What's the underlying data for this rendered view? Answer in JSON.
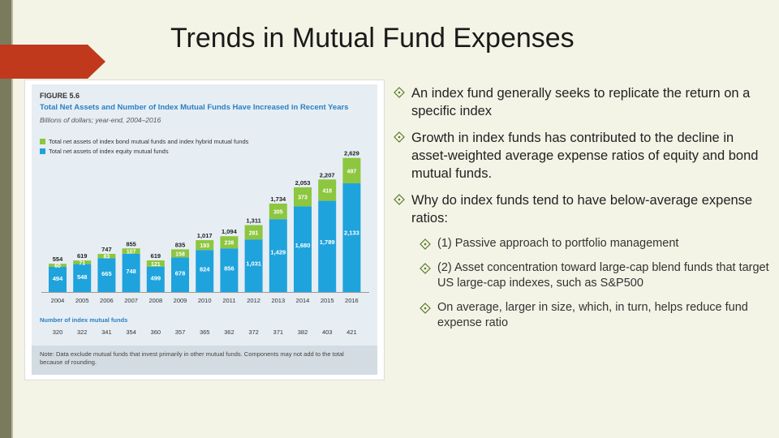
{
  "title": "Trends in Mutual Fund Expenses",
  "figure": {
    "label": "FIGURE 5.6",
    "title": "Total Net Assets and Number of Index Mutual Funds Have Increased in Recent Years",
    "subtitle": "Billions of dollars; year-end, 2004–2016",
    "count_title": "Number of index mutual funds",
    "note": "Note: Data exclude mutual funds that invest primarily in other mutual funds. Components may not add to the total because of rounding."
  },
  "colors": {
    "bond": "#8dc63f",
    "equity": "#1fa3dc",
    "accent": "#2a7fc1",
    "red": "#c0392b"
  },
  "chart_data": {
    "type": "bar",
    "stacked": true,
    "categories": [
      "2004",
      "2005",
      "2006",
      "2007",
      "2008",
      "2009",
      "2010",
      "2011",
      "2012",
      "2013",
      "2014",
      "2015",
      "2016"
    ],
    "series": [
      {
        "name": "Total net assets of index equity mutual funds",
        "values": [
          494,
          548,
          665,
          748,
          499,
          678,
          824,
          856,
          1031,
          1429,
          1680,
          1789,
          2133
        ],
        "labels": [
          "494",
          "548",
          "665",
          "748",
          "499",
          "678",
          "824",
          "856",
          "1,031",
          "1,429",
          "1,680",
          "1,789",
          "2,133"
        ]
      },
      {
        "name": "Total net assets of index bond mutual funds and index hybrid mutual funds",
        "values": [
          60,
          71,
          83,
          107,
          121,
          158,
          193,
          238,
          281,
          305,
          373,
          418,
          497
        ],
        "labels": [
          "60",
          "71",
          "83",
          "107",
          "121",
          "158",
          "193",
          "238",
          "281",
          "305",
          "373",
          "418",
          "497"
        ]
      }
    ],
    "totals": [
      554,
      619,
      747,
      855,
      619,
      835,
      1017,
      1094,
      1311,
      1734,
      2053,
      2207,
      2629
    ],
    "total_labels": [
      "554",
      "619",
      "747",
      "855",
      "619",
      "835",
      "1,017",
      "1,094",
      "1,311",
      "1,734",
      "2,053",
      "2,207",
      "2,629"
    ],
    "fund_counts": [
      "320",
      "322",
      "341",
      "354",
      "360",
      "357",
      "365",
      "362",
      "372",
      "371",
      "382",
      "403",
      "421"
    ],
    "ylim": [
      0,
      2800
    ]
  },
  "bullets": [
    {
      "level": 1,
      "text": "An index fund generally seeks to replicate the return on a specific index"
    },
    {
      "level": 1,
      "text": "Growth in index funds has contributed to the decline in asset-weighted average expense ratios of equity and bond mutual funds."
    },
    {
      "level": 1,
      "text": "Why do index funds tend to have below-average expense ratios:"
    },
    {
      "level": 2,
      "text": "(1) Passive approach to portfolio management"
    },
    {
      "level": 2,
      "text": "(2) Asset concentration toward large-cap blend funds that target US large-cap indexes, such as S&P500"
    },
    {
      "level": 2,
      "text": "On average, larger in size, which, in turn, helps reduce fund expense ratio"
    }
  ]
}
